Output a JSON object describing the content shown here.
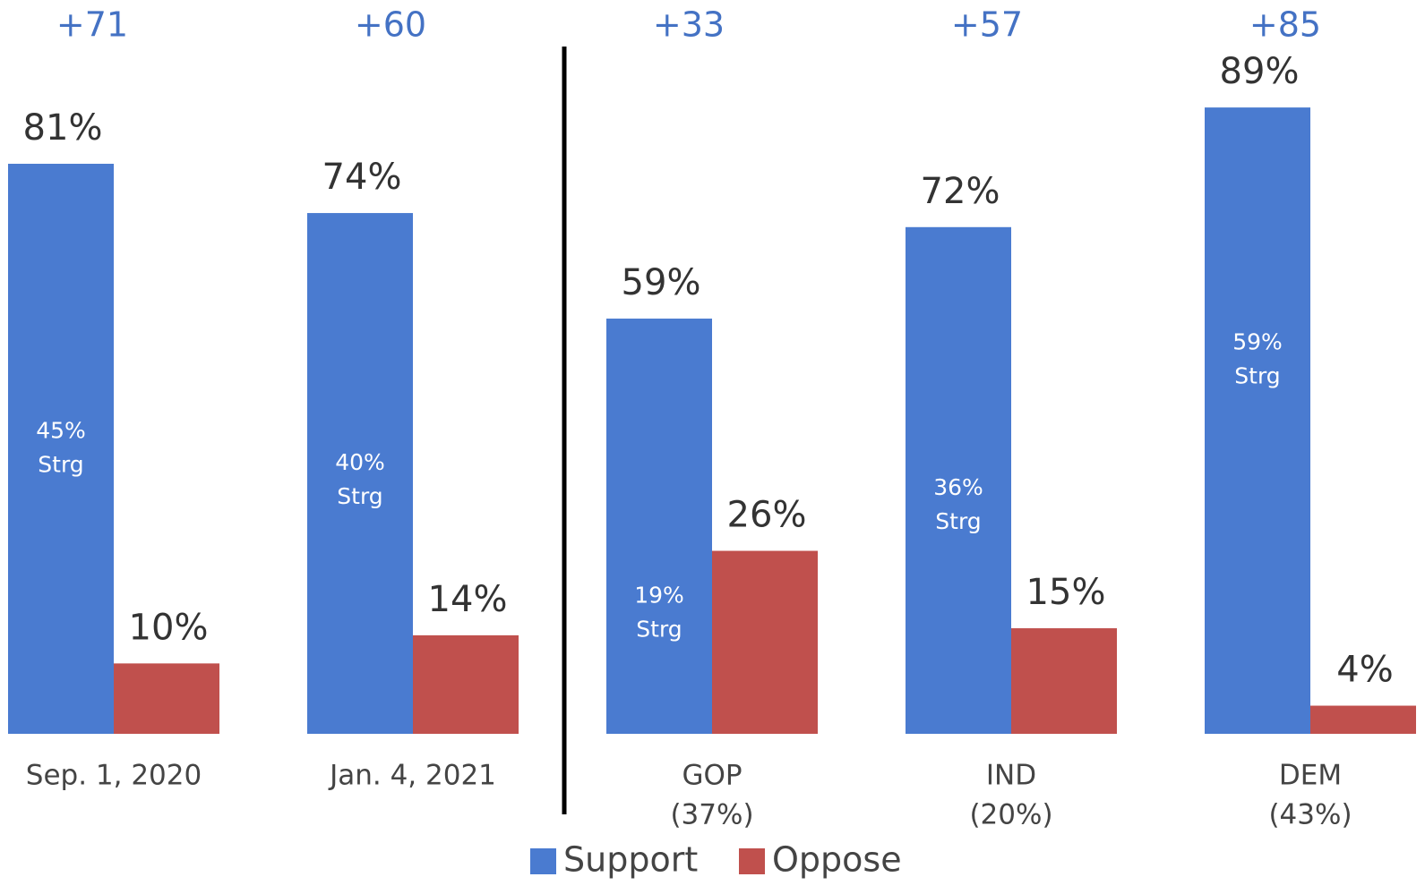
{
  "chart_data": {
    "type": "bar",
    "categories": [
      [
        "Sep. 1, 2020"
      ],
      [
        "Jan. 4, 2021"
      ],
      [
        "GOP",
        "(37%)"
      ],
      [
        "IND",
        "(20%)"
      ],
      [
        "DEM",
        "(43%)"
      ]
    ],
    "series": [
      {
        "name": "Support",
        "color": "#4a7bd0",
        "values": [
          81,
          74,
          59,
          72,
          89
        ],
        "value_labels": [
          "81%",
          "74%",
          "59%",
          "72%",
          "89%"
        ]
      },
      {
        "name": "Oppose",
        "color": "#c0504d",
        "values": [
          10,
          14,
          26,
          15,
          4
        ],
        "value_labels": [
          "10%",
          "14%",
          "26%",
          "15%",
          "4%"
        ]
      }
    ],
    "strong": {
      "label": "Strg",
      "values": [
        45,
        40,
        19,
        36,
        59
      ],
      "value_labels": [
        "45%",
        "40%",
        "19%",
        "36%",
        "59%"
      ]
    },
    "margins": {
      "values": [
        71,
        60,
        33,
        57,
        85
      ],
      "value_labels": [
        "+71",
        "+60",
        "+33",
        "+57",
        "+85"
      ]
    },
    "legend": "bottom"
  }
}
